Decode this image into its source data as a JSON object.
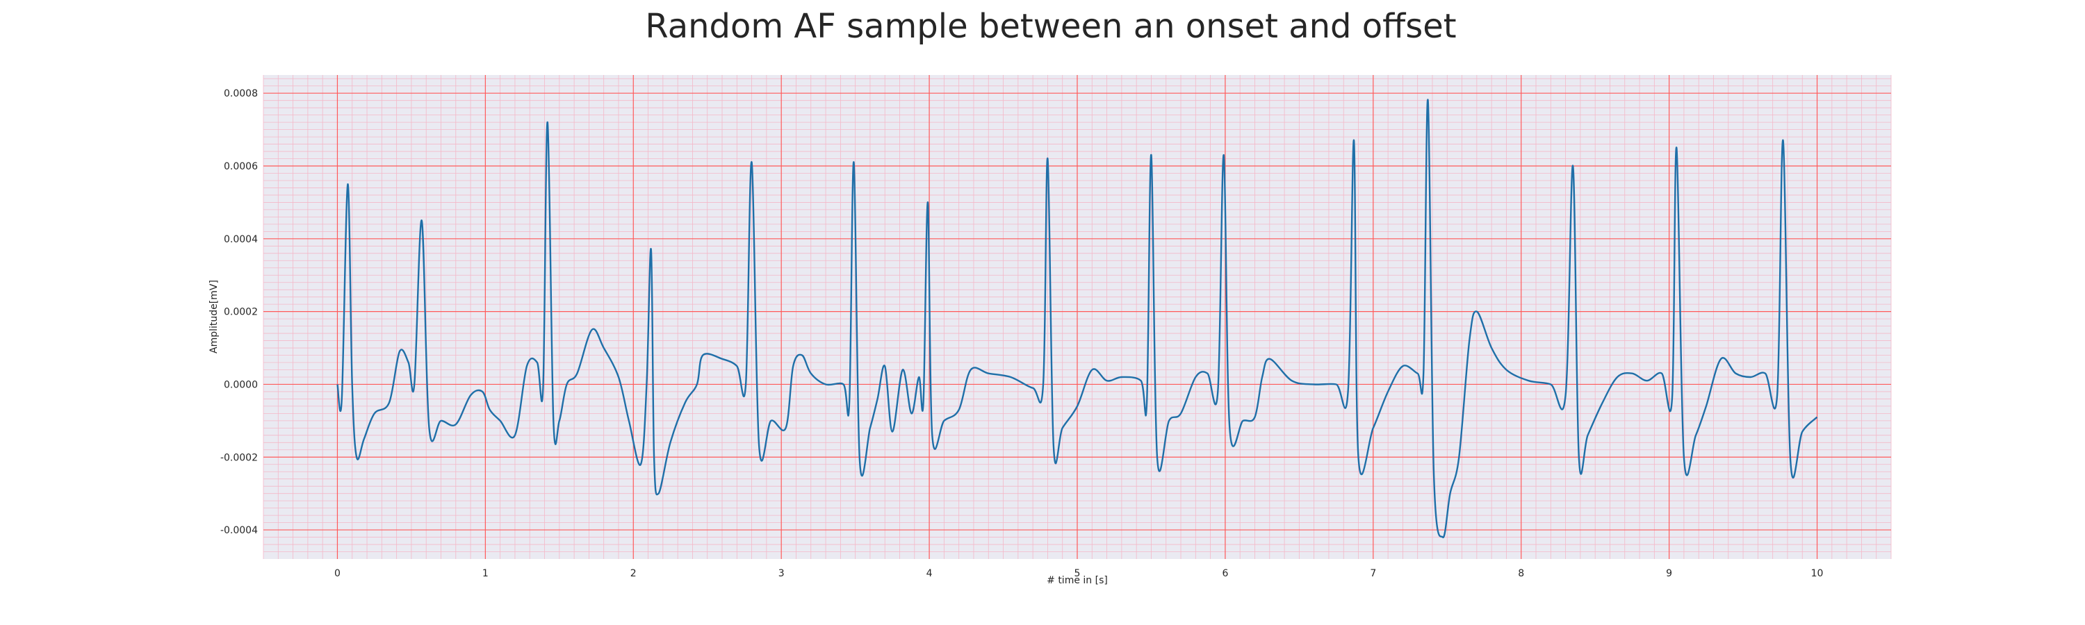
{
  "chart_data": {
    "type": "line",
    "title": "Random AF sample between an onset and offset",
    "xlabel": "# time in [s]",
    "ylabel": "Amplitude[mV]",
    "xlim": [
      -0.5,
      10.5
    ],
    "ylim": [
      -0.00048,
      0.00085
    ],
    "x_ticks": [
      0,
      1,
      2,
      3,
      4,
      5,
      6,
      7,
      8,
      9,
      10
    ],
    "x_tick_labels": [
      "0",
      "1",
      "2",
      "3",
      "4",
      "5",
      "6",
      "7",
      "8",
      "9",
      "10"
    ],
    "y_ticks": [
      -0.0004,
      -0.0002,
      0.0,
      0.0002,
      0.0004,
      0.0006,
      0.0008
    ],
    "y_tick_labels": [
      "-0.0004",
      "-0.0002",
      "0.0000",
      "0.0002",
      "0.0004",
      "0.0006",
      "0.0008"
    ],
    "grid": "major and minor",
    "legend": "none",
    "colors": {
      "line": "#1f6fa8",
      "plot_background": "#eaeaf2",
      "major_grid": "#ff5a5a",
      "minor_grid": "#f4b8c8"
    },
    "series": [
      {
        "values": [
          [
            0.0,
            0.0
          ],
          [
            0.03,
            -4e-05
          ],
          [
            0.07,
            0.00055
          ],
          [
            0.1,
            0.0
          ],
          [
            0.13,
            -0.0002
          ],
          [
            0.18,
            -0.00015
          ],
          [
            0.25,
            -8e-05
          ],
          [
            0.35,
            -5e-05
          ],
          [
            0.42,
            9e-05
          ],
          [
            0.48,
            6e-05
          ],
          [
            0.52,
            0.0
          ],
          [
            0.57,
            0.00045
          ],
          [
            0.62,
            -0.00012
          ],
          [
            0.7,
            -0.0001
          ],
          [
            0.8,
            -0.00011
          ],
          [
            0.9,
            -3e-05
          ],
          [
            0.98,
            -2e-05
          ],
          [
            1.03,
            -7e-05
          ],
          [
            1.1,
            -0.0001
          ],
          [
            1.2,
            -0.00014
          ],
          [
            1.28,
            5e-05
          ],
          [
            1.35,
            6e-05
          ],
          [
            1.39,
            -1e-05
          ],
          [
            1.42,
            0.00072
          ],
          [
            1.46,
            -0.0001
          ],
          [
            1.5,
            -0.0001
          ],
          [
            1.55,
            0.0
          ],
          [
            1.62,
            3e-05
          ],
          [
            1.72,
            0.00015
          ],
          [
            1.8,
            0.0001
          ],
          [
            1.9,
            2e-05
          ],
          [
            1.97,
            -0.0001
          ],
          [
            2.05,
            -0.00022
          ],
          [
            2.09,
            0.0
          ],
          [
            2.12,
            0.00037
          ],
          [
            2.14,
            -0.0002
          ],
          [
            2.17,
            -0.0003
          ],
          [
            2.25,
            -0.00016
          ],
          [
            2.35,
            -5e-05
          ],
          [
            2.43,
            0.0
          ],
          [
            2.47,
            8e-05
          ],
          [
            2.6,
            7e-05
          ],
          [
            2.7,
            5e-05
          ],
          [
            2.76,
            0.0
          ],
          [
            2.8,
            0.00061
          ],
          [
            2.85,
            -0.00017
          ],
          [
            2.93,
            -0.0001
          ],
          [
            3.03,
            -0.00012
          ],
          [
            3.08,
            5e-05
          ],
          [
            3.14,
            8e-05
          ],
          [
            3.2,
            3e-05
          ],
          [
            3.3,
            0.0
          ],
          [
            3.42,
            0.0
          ],
          [
            3.46,
            -5e-05
          ],
          [
            3.49,
            0.00061
          ],
          [
            3.53,
            -0.00021
          ],
          [
            3.6,
            -0.00012
          ],
          [
            3.65,
            -4e-05
          ],
          [
            3.7,
            5e-05
          ],
          [
            3.75,
            -0.00013
          ],
          [
            3.82,
            4e-05
          ],
          [
            3.88,
            -8e-05
          ],
          [
            3.93,
            2e-05
          ],
          [
            3.96,
            -5e-05
          ],
          [
            3.99,
            0.0005
          ],
          [
            4.02,
            -0.00014
          ],
          [
            4.1,
            -0.0001
          ],
          [
            4.2,
            -7e-05
          ],
          [
            4.28,
            4e-05
          ],
          [
            4.4,
            3e-05
          ],
          [
            4.55,
            2e-05
          ],
          [
            4.7,
            -1e-05
          ],
          [
            4.77,
            0.0
          ],
          [
            4.8,
            0.00062
          ],
          [
            4.84,
            -0.00017
          ],
          [
            4.9,
            -0.00012
          ],
          [
            5.0,
            -6e-05
          ],
          [
            5.1,
            4e-05
          ],
          [
            5.2,
            1e-05
          ],
          [
            5.3,
            2e-05
          ],
          [
            5.43,
            1e-05
          ],
          [
            5.47,
            -5e-05
          ],
          [
            5.5,
            0.00063
          ],
          [
            5.54,
            -0.0002
          ],
          [
            5.62,
            -0.0001
          ],
          [
            5.7,
            -8e-05
          ],
          [
            5.8,
            2e-05
          ],
          [
            5.88,
            3e-05
          ],
          [
            5.95,
            -2e-05
          ],
          [
            5.99,
            0.00063
          ],
          [
            6.03,
            -0.00012
          ],
          [
            6.12,
            -0.0001
          ],
          [
            6.2,
            -9e-05
          ],
          [
            6.25,
            2e-05
          ],
          [
            6.3,
            7e-05
          ],
          [
            6.45,
            1e-05
          ],
          [
            6.6,
            0.0
          ],
          [
            6.75,
            0.0
          ],
          [
            6.83,
            -2e-05
          ],
          [
            6.87,
            0.00067
          ],
          [
            6.9,
            -0.0002
          ],
          [
            7.0,
            -0.00012
          ],
          [
            7.1,
            -2e-05
          ],
          [
            7.2,
            5e-05
          ],
          [
            7.3,
            3e-05
          ],
          [
            7.34,
            3e-05
          ],
          [
            7.37,
            0.00078
          ],
          [
            7.41,
            -0.00025
          ],
          [
            7.47,
            -0.00042
          ],
          [
            7.52,
            -0.0003
          ],
          [
            7.58,
            -0.0002
          ],
          [
            7.65,
            0.00012
          ],
          [
            7.7,
            0.0002
          ],
          [
            7.8,
            0.0001
          ],
          [
            7.9,
            4e-05
          ],
          [
            8.05,
            1e-05
          ],
          [
            8.2,
            0.0
          ],
          [
            8.3,
            -3e-05
          ],
          [
            8.35,
            0.0006
          ],
          [
            8.39,
            -0.0002
          ],
          [
            8.45,
            -0.00014
          ],
          [
            8.55,
            -5e-05
          ],
          [
            8.65,
            2e-05
          ],
          [
            8.75,
            3e-05
          ],
          [
            8.85,
            1e-05
          ],
          [
            8.95,
            3e-05
          ],
          [
            9.02,
            -4e-05
          ],
          [
            9.05,
            0.00065
          ],
          [
            9.1,
            -0.0002
          ],
          [
            9.18,
            -0.00014
          ],
          [
            9.25,
            -6e-05
          ],
          [
            9.35,
            7e-05
          ],
          [
            9.45,
            3e-05
          ],
          [
            9.55,
            2e-05
          ],
          [
            9.65,
            3e-05
          ],
          [
            9.73,
            -3e-05
          ],
          [
            9.77,
            0.00067
          ],
          [
            9.82,
            -0.00021
          ],
          [
            9.9,
            -0.00013
          ],
          [
            10.0,
            -9e-05
          ]
        ]
      }
    ]
  }
}
